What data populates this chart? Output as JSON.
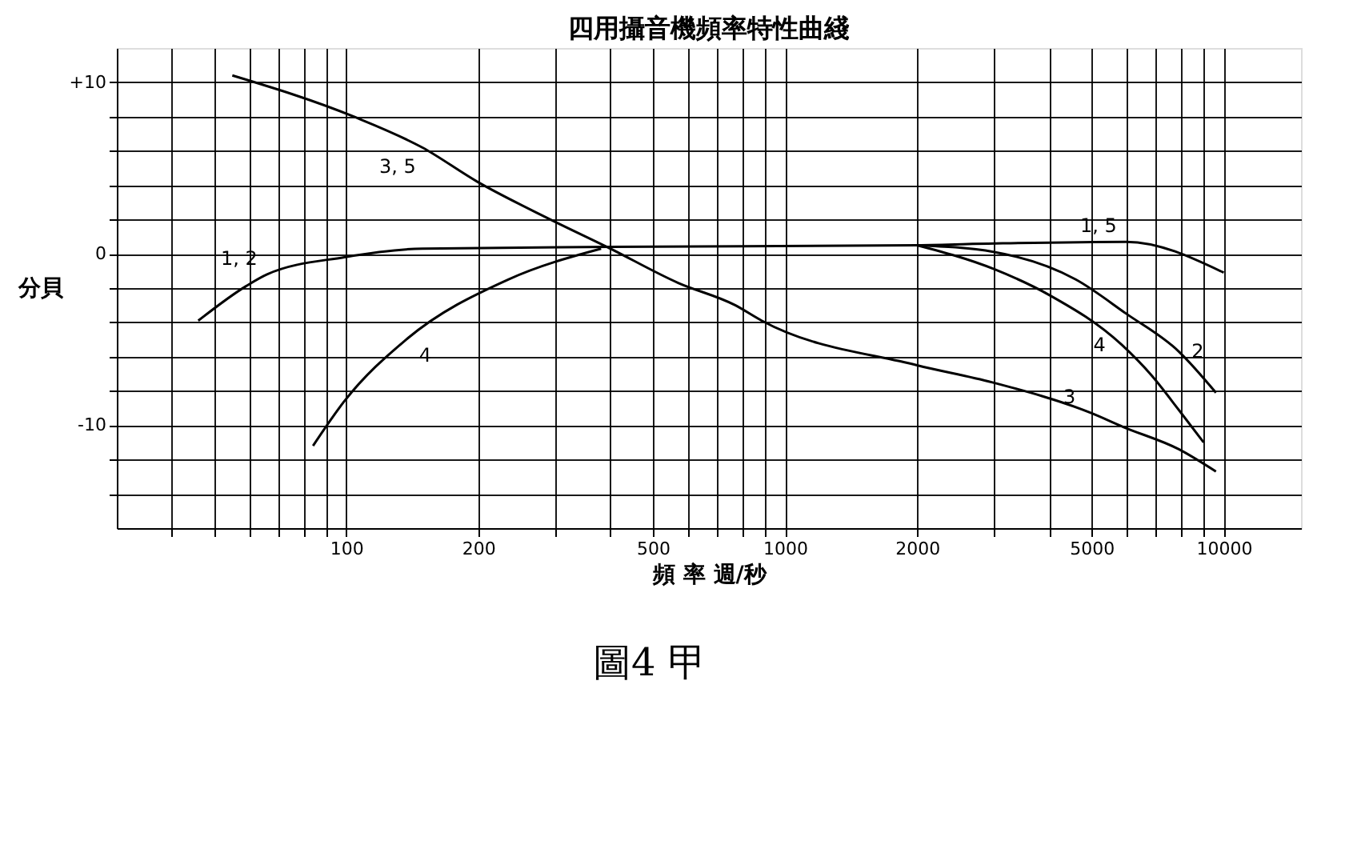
{
  "chart_data": {
    "type": "line",
    "title": "四用攝音機頻率特性曲綫",
    "xlabel": "頻 率 週/秒",
    "ylabel": "分貝",
    "log": "x",
    "grid": true,
    "legend": false,
    "marker": "none",
    "line_style": "solid",
    "xlim": [
      30,
      15000
    ],
    "ylim": [
      -16,
      12
    ],
    "xticks": [
      {
        "value": 40,
        "label": null
      },
      {
        "value": 50,
        "label": null
      },
      {
        "value": 60,
        "label": null
      },
      {
        "value": 70,
        "label": null
      },
      {
        "value": 80,
        "label": null
      },
      {
        "value": 90,
        "label": null
      },
      100,
      200,
      {
        "value": 300,
        "label": null
      },
      {
        "value": 400,
        "label": null
      },
      500,
      {
        "value": 600,
        "label": null
      },
      {
        "value": 700,
        "label": null
      },
      {
        "value": 800,
        "label": null
      },
      {
        "value": 900,
        "label": null
      },
      1000,
      2000,
      {
        "value": 3000,
        "label": null
      },
      {
        "value": 4000,
        "label": null
      },
      5000,
      {
        "value": 6000,
        "label": null
      },
      {
        "value": 7000,
        "label": null
      },
      {
        "value": 8000,
        "label": null
      },
      {
        "value": 9000,
        "label": null
      },
      10000
    ],
    "yticks": [
      {
        "value": -14,
        "label": null
      },
      {
        "value": -12,
        "label": null
      },
      -10,
      {
        "value": -8,
        "label": null
      },
      {
        "value": -6,
        "label": null
      },
      {
        "value": -4,
        "label": null
      },
      {
        "value": -2,
        "label": null
      },
      0,
      {
        "value": 2,
        "label": null
      },
      {
        "value": 4,
        "label": null
      },
      {
        "value": 6,
        "label": null
      },
      {
        "value": 8,
        "label": null
      },
      {
        "value": 10,
        "label": "+10"
      }
    ],
    "series": [
      {
        "color": "#000000",
        "x": [
          46,
          59,
          66,
          99,
          149,
          400,
          2000,
          3000,
          6000,
          10000
        ],
        "values": [
          -3.9,
          -1.9,
          -1.2,
          -0.2,
          0.3,
          0.4,
          0.5,
          0.6,
          0.7,
          -1.1
        ]
      },
      {
        "color": "#000000",
        "x": [
          2000,
          3000,
          4600,
          6000,
          7900,
          9600
        ],
        "values": [
          0.5,
          0.1,
          -1.5,
          -3.5,
          -5.7,
          -8.1
        ]
      },
      {
        "color": "#000000",
        "x": [
          55,
          104,
          149,
          199,
          292,
          393,
          571,
          770,
          885,
          2000,
          2970,
          5000,
          5900,
          7900,
          9600
        ],
        "values": [
          10.4,
          8.0,
          6.2,
          4.2,
          2.0,
          0.4,
          -1.7,
          -3.0,
          -3.9,
          -6.5,
          -7.5,
          -9.3,
          -10.1,
          -11.4,
          -12.7
        ]
      },
      {
        "color": "#000000",
        "x": [
          84,
          99,
          137,
          234,
          381
        ],
        "values": [
          -11.2,
          -8.6,
          -5.0,
          -1.5,
          0.3
        ]
      },
      {
        "color": "#000000",
        "x": [
          2000,
          3000,
          4000,
          5850,
          6850,
          7950,
          9000
        ],
        "values": [
          0.5,
          -0.9,
          -2.4,
          -5.3,
          -7.1,
          -9.2,
          -11.0
        ]
      }
    ],
    "annotations": [
      {
        "text": "1, 2",
        "x": 66,
        "y": -1.2
      },
      {
        "text": "3, 5",
        "x": 149,
        "y": 6.2
      },
      {
        "text": "4",
        "x": 137,
        "y": -5.0
      },
      {
        "text": "1, 5",
        "x": 6000,
        "y": 0.7
      },
      {
        "text": "4",
        "x": 5850,
        "y": -5.3
      },
      {
        "text": "2",
        "x": 7900,
        "y": -5.7
      },
      {
        "text": "3",
        "x": 5000,
        "y": -9.3
      },
      "圖4 甲"
    ]
  }
}
